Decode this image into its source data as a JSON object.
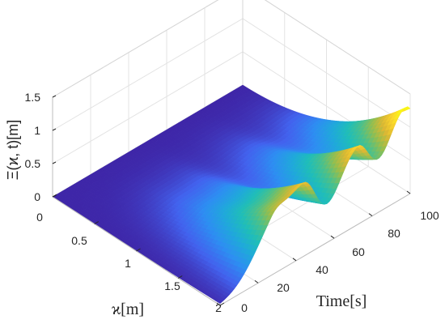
{
  "chart_data": {
    "type": "surface",
    "zlabel": "Ξ(ϰ, t)[m]",
    "xlabel": "ϰ[m]",
    "ylabel": "Time[s]",
    "x_ticks": [
      "0",
      "0.5",
      "1",
      "1.5",
      "2"
    ],
    "y_ticks": [
      "0",
      "20",
      "40",
      "60",
      "80",
      "100"
    ],
    "z_ticks": [
      "0",
      "0.5",
      "1",
      "1.5"
    ],
    "xlim": [
      0,
      2
    ],
    "ylim": [
      0,
      100
    ],
    "zlim": [
      0,
      1.5
    ],
    "grid": true,
    "colormap": "parula",
    "colormap_stops": [
      "#3e26a8",
      "#4262ee",
      "#2d8ef2",
      "#1fa9da",
      "#1fbeb8",
      "#4ac08c",
      "#95be4e",
      "#dcb833",
      "#fcd52c",
      "#f9fb15"
    ],
    "peaks": [
      {
        "x": 2.0,
        "t": 27,
        "z": 0.55
      },
      {
        "x": 2.0,
        "t": 44,
        "z": 1.02
      },
      {
        "x": 2.0,
        "t": 72,
        "z": 1.05
      },
      {
        "x": 2.0,
        "t": 98,
        "z": 1.28
      }
    ],
    "description_values": {
      "surface_at_x0": 0,
      "wave_growth_with_x": "increasing toward x = 2"
    }
  }
}
